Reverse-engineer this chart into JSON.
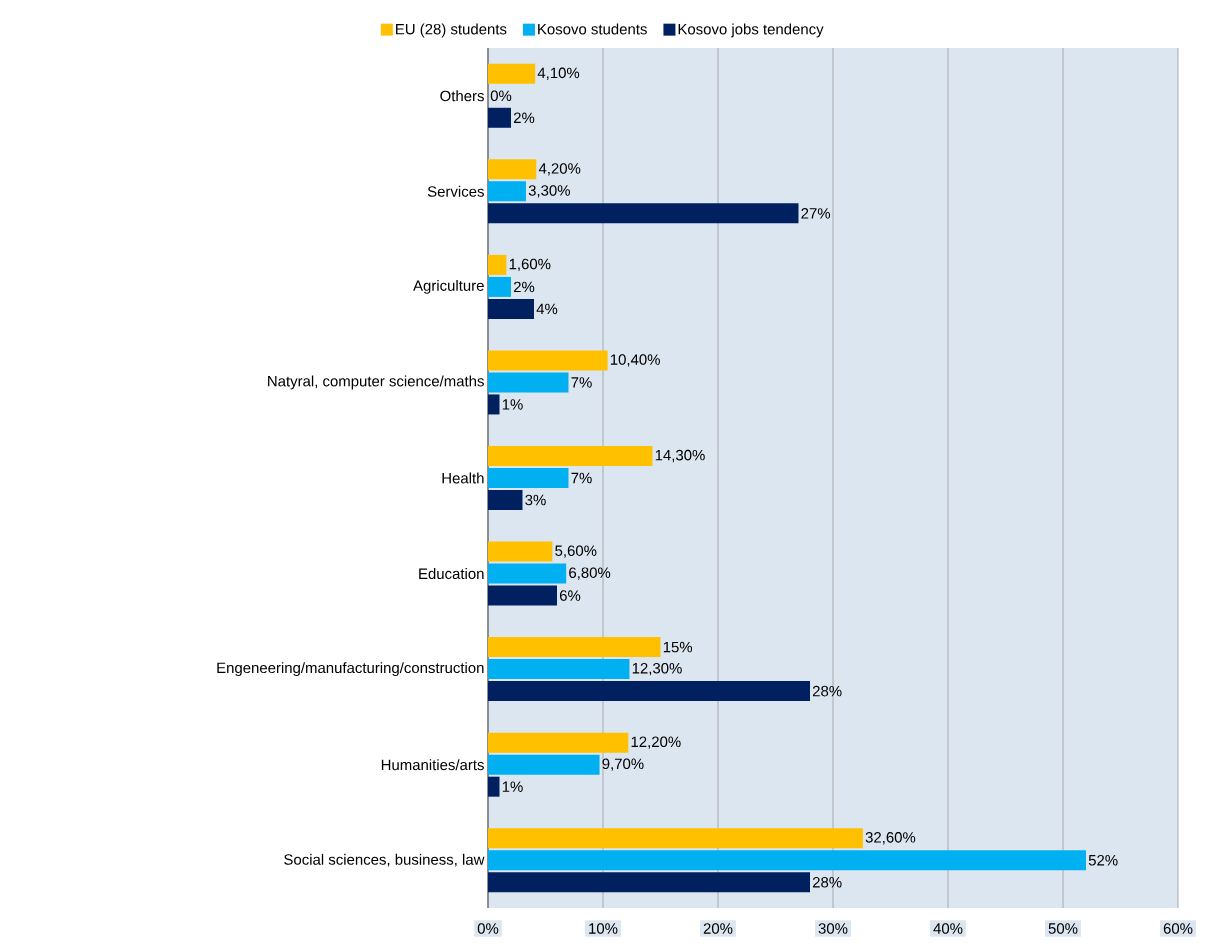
{
  "chart_data": {
    "type": "bar",
    "orientation": "horizontal",
    "categories": [
      "Others",
      "Services",
      "Agriculture",
      "Natyral, computer science/maths",
      "Health",
      "Education",
      "Engeneering/manufacturing/construction",
      "Humanities/arts",
      "Social sciences, business, law"
    ],
    "series": [
      {
        "name": "EU (28) students",
        "color": "#ffc000",
        "values": [
          4.1,
          4.2,
          1.6,
          10.4,
          14.3,
          5.6,
          15,
          12.2,
          32.6
        ],
        "value_labels": [
          "4,10%",
          "4,20%",
          "1,60%",
          "10,40%",
          "14,30%",
          "5,60%",
          "15%",
          "12,20%",
          "32,60%"
        ]
      },
      {
        "name": "Kosovo students",
        "color": "#00b0f0",
        "values": [
          0,
          3.3,
          2,
          7,
          7,
          6.8,
          12.3,
          9.7,
          52
        ],
        "value_labels": [
          "0%",
          "3,30%",
          "2%",
          "7%",
          "7%",
          "6,80%",
          "12,30%",
          "9,70%",
          "52%"
        ]
      },
      {
        "name": "Kosovo jobs tendency",
        "color": "#002060",
        "values": [
          2,
          27,
          4,
          1,
          3,
          6,
          28,
          1,
          28
        ],
        "value_labels": [
          "2%",
          "27%",
          "4%",
          "1%",
          "3%",
          "6%",
          "28%",
          "1%",
          "28%"
        ]
      }
    ],
    "xlim": [
      0,
      60
    ],
    "xticks": [
      {
        "value": 0,
        "label": "0%"
      },
      {
        "value": 10,
        "label": "10%"
      },
      {
        "value": 20,
        "label": "20%"
      },
      {
        "value": 30,
        "label": "30%"
      },
      {
        "value": 40,
        "label": "40%"
      },
      {
        "value": 50,
        "label": "50%"
      },
      {
        "value": 60,
        "label": "60%"
      }
    ],
    "grid": "x",
    "legend": "top"
  }
}
